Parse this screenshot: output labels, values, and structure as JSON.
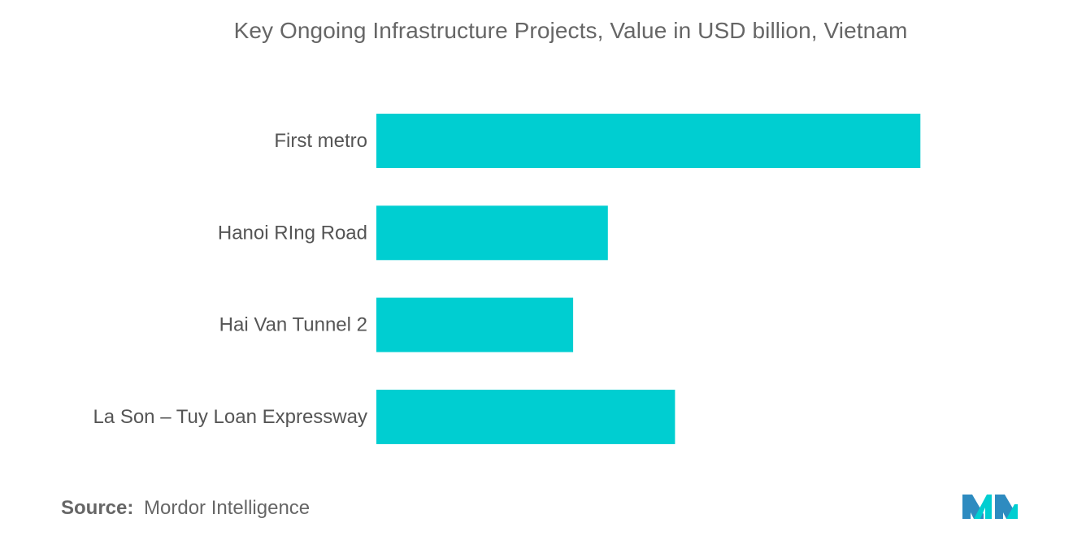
{
  "chart_data": {
    "type": "bar",
    "orientation": "horizontal",
    "title": "Key Ongoing Infrastructure Projects, Value in USD billion, Vietnam",
    "categories": [
      "First metro",
      "Hanoi RIng Road",
      "Hai Van Tunnel 2",
      "La Son – Tuy Loan Expressway"
    ],
    "values": [
      2.35,
      1.0,
      0.85,
      1.29
    ],
    "xlabel": "",
    "ylabel": "",
    "xlim": [
      0,
      2.5
    ],
    "grid": false,
    "legend": "none",
    "bar_color": "#00CED1"
  },
  "source": {
    "label": "Source:",
    "text": "Mordor Intelligence"
  },
  "logo": {
    "icon": "mordor-intelligence-logo",
    "colors": [
      "#2E8BC0",
      "#00CED1"
    ]
  }
}
